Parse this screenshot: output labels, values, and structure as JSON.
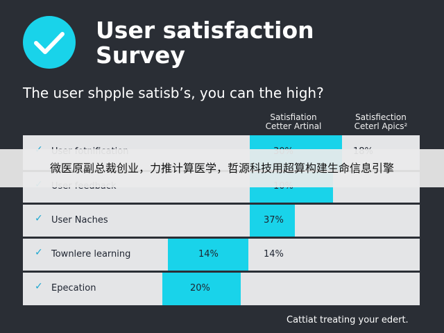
{
  "header": {
    "title_lines": [
      "User satisfaction",
      "Survey"
    ]
  },
  "question": "The user shpple satisb’s, you can the high?",
  "table": {
    "columns": [
      [
        "Satisfiation",
        "Cetter Artinal"
      ],
      [
        "Satisfiection",
        "Ceterl Apics²"
      ]
    ],
    "rows": [
      [
        "User fotnification",
        "30%",
        "18%"
      ],
      [
        "User feedback",
        "10%",
        ""
      ],
      [
        "User Naches",
        "37%",
        ""
      ],
      [
        "Townlere learning",
        "14%",
        "14%"
      ],
      [
        "Epecation",
        "20%",
        ""
      ]
    ]
  },
  "banner": "微医原副总裁创业，力推计算医学，哲源科技用超算构建生命信息引擎",
  "footer": "Cattiat treating your edert."
}
